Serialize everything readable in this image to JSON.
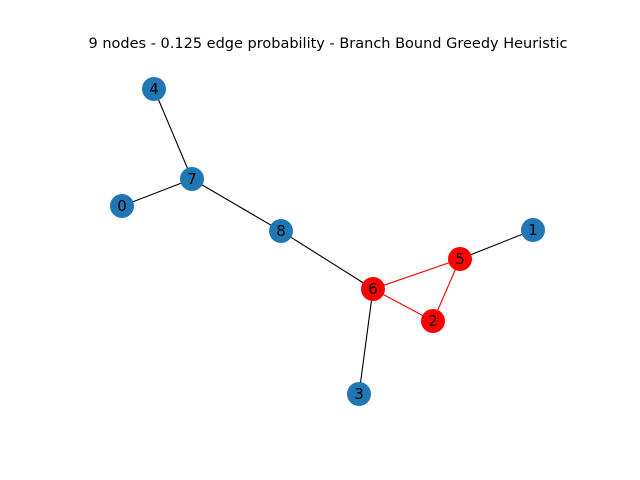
{
  "title": "9 nodes - 0.125 edge probability - Branch Bound Greedy Heuristic",
  "colors": {
    "node_default": "#1f77b4",
    "node_highlight": "#ff0000",
    "edge_default": "#000000",
    "edge_highlight": "#ff0000"
  },
  "nodes": [
    {
      "id": "0",
      "label": "0",
      "highlighted": false
    },
    {
      "id": "1",
      "label": "1",
      "highlighted": false
    },
    {
      "id": "2",
      "label": "2",
      "highlighted": true
    },
    {
      "id": "3",
      "label": "3",
      "highlighted": false
    },
    {
      "id": "4",
      "label": "4",
      "highlighted": false
    },
    {
      "id": "5",
      "label": "5",
      "highlighted": true
    },
    {
      "id": "6",
      "label": "6",
      "highlighted": true
    },
    {
      "id": "7",
      "label": "7",
      "highlighted": false
    },
    {
      "id": "8",
      "label": "8",
      "highlighted": false
    }
  ],
  "edges": [
    {
      "source": "4",
      "target": "7",
      "highlighted": false
    },
    {
      "source": "0",
      "target": "7",
      "highlighted": false
    },
    {
      "source": "7",
      "target": "8",
      "highlighted": false
    },
    {
      "source": "8",
      "target": "6",
      "highlighted": false
    },
    {
      "source": "6",
      "target": "3",
      "highlighted": false
    },
    {
      "source": "5",
      "target": "1",
      "highlighted": false
    },
    {
      "source": "6",
      "target": "5",
      "highlighted": true
    },
    {
      "source": "6",
      "target": "2",
      "highlighted": true
    },
    {
      "source": "5",
      "target": "2",
      "highlighted": true
    }
  ]
}
